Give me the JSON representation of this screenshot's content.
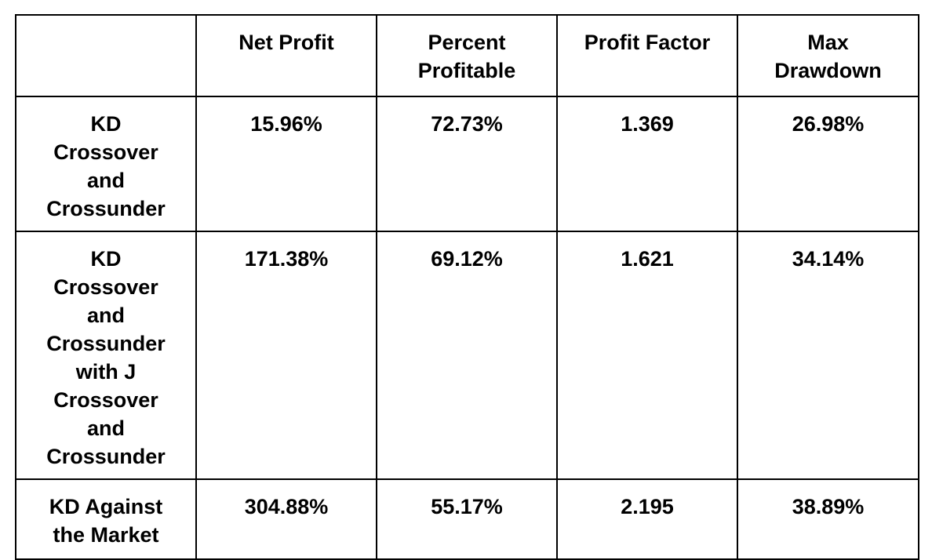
{
  "chart_data": {
    "type": "table",
    "columns": [
      "",
      "Net Profit",
      "Percent Profitable",
      "Profit Factor",
      "Max Drawdown"
    ],
    "rows": [
      {
        "label": "KD Crossover and Crossunder",
        "values": [
          "15.96%",
          "72.73%",
          "1.369",
          "26.98%"
        ]
      },
      {
        "label": "KD Crossover and Crossunder with J Crossover and Crossunder",
        "values": [
          "171.38%",
          "69.12%",
          "1.621",
          "34.14%"
        ]
      },
      {
        "label": "KD Against the Market",
        "values": [
          "304.88%",
          "55.17%",
          "2.195",
          "38.89%"
        ]
      }
    ]
  }
}
